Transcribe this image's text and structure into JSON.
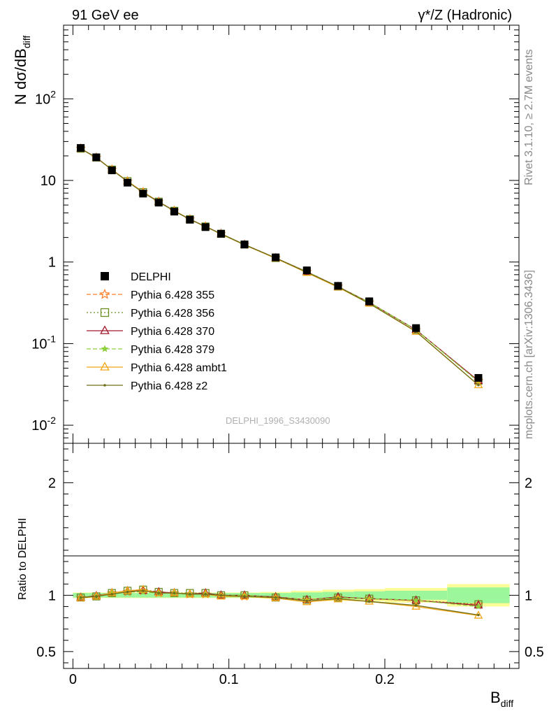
{
  "header": {
    "left_title": "91 GeV ee",
    "right_title": "γ*/Z (Hadronic)"
  },
  "side_labels": {
    "rivet": "Rivet 3.1.10, ≥ 2.7M events",
    "mcplots": "mcplots.cern.ch [arXiv:1306.3436]"
  },
  "watermark": "DELPHI_1996_S3430090",
  "chart_data": [
    {
      "type": "scatter",
      "panel": "main",
      "ylabel": "N dσ/dB",
      "ylabel_sub": "diff",
      "yscale": "log",
      "ylim": [
        0.006,
        800
      ],
      "xlim": [
        -0.006,
        0.286
      ],
      "yticks": [
        {
          "value": 0.01,
          "base": "10",
          "exp": "-2"
        },
        {
          "value": 0.1,
          "base": "10",
          "exp": "-1"
        },
        {
          "value": 1,
          "base": "1",
          "exp": ""
        },
        {
          "value": 10,
          "base": "10",
          "exp": ""
        },
        {
          "value": 100,
          "base": "10",
          "exp": "2"
        }
      ],
      "x": [
        0.005,
        0.015,
        0.025,
        0.035,
        0.045,
        0.055,
        0.065,
        0.075,
        0.085,
        0.095,
        0.11,
        0.13,
        0.15,
        0.17,
        0.19,
        0.22,
        0.26
      ],
      "series": [
        {
          "name": "DELPHI",
          "color": "#000000",
          "marker": "square-filled",
          "dash": "none",
          "values": [
            25.0,
            19.2,
            13.3,
            9.4,
            6.9,
            5.35,
            4.15,
            3.3,
            2.68,
            2.22,
            1.64,
            1.14,
            0.79,
            0.51,
            0.33,
            0.155,
            0.038
          ]
        },
        {
          "name": "Pythia 6.428 355",
          "color": "#ff7f2a",
          "marker": "star-open",
          "dash": "6,3",
          "values": [
            24.6,
            19.0,
            13.6,
            9.7,
            7.2,
            5.45,
            4.25,
            3.33,
            2.72,
            2.22,
            1.63,
            1.12,
            0.76,
            0.5,
            0.32,
            0.147,
            0.035
          ]
        },
        {
          "name": "Pythia 6.428 356",
          "color": "#6b8e23",
          "marker": "square-open",
          "dash": "2,3",
          "values": [
            24.5,
            19.1,
            13.6,
            9.8,
            7.2,
            5.5,
            4.25,
            3.35,
            2.73,
            2.22,
            1.64,
            1.12,
            0.76,
            0.5,
            0.32,
            0.148,
            0.035
          ]
        },
        {
          "name": "Pythia 6.428 370",
          "color": "#a0182c",
          "marker": "triangle-open",
          "dash": "none",
          "values": [
            24.6,
            19.1,
            13.6,
            9.8,
            7.2,
            5.5,
            4.25,
            3.34,
            2.73,
            2.22,
            1.64,
            1.12,
            0.76,
            0.5,
            0.32,
            0.148,
            0.035
          ]
        },
        {
          "name": "Pythia 6.428 379",
          "color": "#8ccf3a",
          "marker": "star-filled",
          "dash": "6,3",
          "values": [
            24.5,
            19.1,
            13.6,
            9.7,
            7.1,
            5.45,
            4.22,
            3.33,
            2.72,
            2.22,
            1.64,
            1.12,
            0.76,
            0.5,
            0.32,
            0.148,
            0.034
          ]
        },
        {
          "name": "Pythia 6.428 ambt1",
          "color": "#f2a516",
          "marker": "triangle-open",
          "dash": "none",
          "values": [
            24.4,
            19.0,
            13.6,
            9.8,
            7.2,
            5.45,
            4.25,
            3.33,
            2.72,
            2.2,
            1.62,
            1.11,
            0.74,
            0.49,
            0.31,
            0.14,
            0.031
          ]
        },
        {
          "name": "Pythia 6.428 z2",
          "color": "#6f6f1a",
          "marker": "dot",
          "dash": "none",
          "values": [
            24.5,
            19.0,
            13.5,
            9.7,
            7.1,
            5.45,
            4.22,
            3.33,
            2.72,
            2.21,
            1.63,
            1.12,
            0.75,
            0.5,
            0.31,
            0.141,
            0.031
          ]
        }
      ]
    },
    {
      "type": "line",
      "panel": "ratio",
      "ylabel": "Ratio to DELPHI",
      "xlabel": "B",
      "xlabel_sub": "diff",
      "ylim": [
        0.35,
        2.35
      ],
      "xlim": [
        -0.006,
        0.286
      ],
      "xticks": [
        {
          "value": 0,
          "label": "0"
        },
        {
          "value": 0.1,
          "label": "0.1"
        },
        {
          "value": 0.2,
          "label": "0.2"
        }
      ],
      "yticks": [
        {
          "value": 0.5,
          "label": "0.5"
        },
        {
          "value": 1,
          "label": "1"
        },
        {
          "value": 2,
          "label": "2"
        }
      ],
      "bands": {
        "bins": [
          [
            0,
            0.01
          ],
          [
            0.01,
            0.02
          ],
          [
            0.02,
            0.03
          ],
          [
            0.03,
            0.04
          ],
          [
            0.04,
            0.05
          ],
          [
            0.05,
            0.06
          ],
          [
            0.06,
            0.07
          ],
          [
            0.07,
            0.08
          ],
          [
            0.08,
            0.09
          ],
          [
            0.09,
            0.1
          ],
          [
            0.1,
            0.12
          ],
          [
            0.12,
            0.14
          ],
          [
            0.14,
            0.16
          ],
          [
            0.16,
            0.18
          ],
          [
            0.18,
            0.2
          ],
          [
            0.2,
            0.24
          ],
          [
            0.24,
            0.28
          ]
        ],
        "stat_halfwidth": [
          0.02,
          0.02,
          0.02,
          0.02,
          0.02,
          0.02,
          0.02,
          0.02,
          0.02,
          0.02,
          0.02,
          0.02,
          0.025,
          0.03,
          0.035,
          0.04,
          0.07
        ],
        "total_halfwidth": [
          0.025,
          0.025,
          0.025,
          0.025,
          0.025,
          0.025,
          0.025,
          0.025,
          0.025,
          0.025,
          0.025,
          0.03,
          0.04,
          0.05,
          0.055,
          0.065,
          0.1
        ],
        "stat_color": "#9cf79c",
        "total_color": "#fbfb98"
      },
      "series": [
        {
          "name": "Pythia 6.428 355",
          "values": [
            0.98,
            0.99,
            1.02,
            1.03,
            1.04,
            1.02,
            1.02,
            1.01,
            1.01,
            1.0,
            0.99,
            0.98,
            0.96,
            0.98,
            0.97,
            0.95,
            0.92
          ]
        },
        {
          "name": "Pythia 6.428 356",
          "values": [
            0.98,
            0.99,
            1.02,
            1.04,
            1.05,
            1.03,
            1.02,
            1.02,
            1.02,
            1.0,
            1.0,
            0.98,
            0.96,
            0.98,
            0.97,
            0.955,
            0.92
          ]
        },
        {
          "name": "Pythia 6.428 370",
          "values": [
            0.98,
            0.995,
            1.02,
            1.04,
            1.04,
            1.03,
            1.02,
            1.01,
            1.02,
            1.0,
            1.0,
            0.985,
            0.96,
            0.985,
            0.97,
            0.955,
            0.91
          ]
        },
        {
          "name": "Pythia 6.428 379",
          "values": [
            0.98,
            0.99,
            1.02,
            1.03,
            1.03,
            1.02,
            1.02,
            1.01,
            1.01,
            1.0,
            1.0,
            0.98,
            0.96,
            0.98,
            0.97,
            0.955,
            0.9
          ]
        },
        {
          "name": "Pythia 6.428 ambt1",
          "values": [
            0.975,
            0.99,
            1.02,
            1.04,
            1.05,
            1.02,
            1.02,
            1.01,
            1.01,
            0.99,
            0.99,
            0.975,
            0.94,
            0.965,
            0.945,
            0.9,
            0.82
          ]
        },
        {
          "name": "Pythia 6.428 z2",
          "values": [
            0.98,
            0.99,
            1.01,
            1.03,
            1.04,
            1.02,
            1.02,
            1.01,
            1.01,
            1.0,
            0.99,
            0.98,
            0.95,
            0.97,
            0.945,
            0.91,
            0.825
          ]
        }
      ]
    }
  ]
}
